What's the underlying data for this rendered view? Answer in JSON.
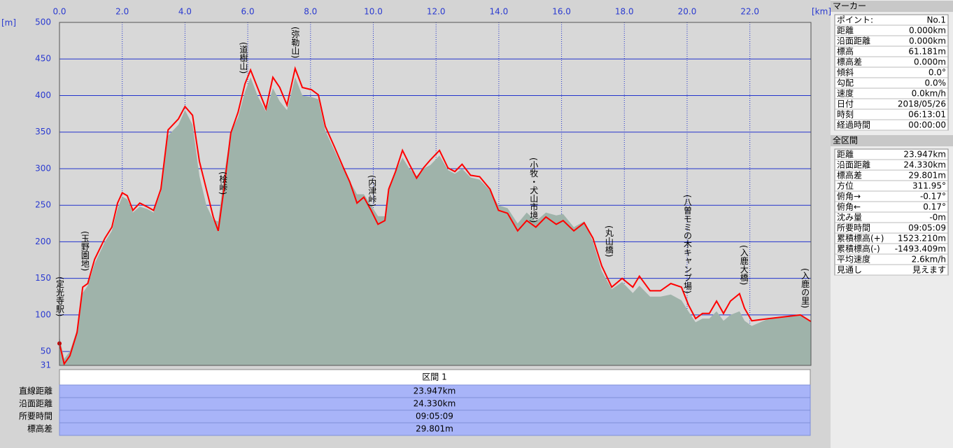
{
  "chart_data": {
    "type": "line",
    "x_unit": "[km]",
    "y_unit": "[m]",
    "xlim": [
      0,
      23.947
    ],
    "ylim": [
      31,
      500
    ],
    "xticks": [
      {
        "value": 0,
        "label": "0.0"
      },
      {
        "value": 2,
        "label": "2.0"
      },
      {
        "value": 4,
        "label": "4.0"
      },
      {
        "value": 6,
        "label": "6.0"
      },
      {
        "value": 8,
        "label": "8.0"
      },
      {
        "value": 10,
        "label": "10.0"
      },
      {
        "value": 12,
        "label": "12.0"
      },
      {
        "value": 14,
        "label": "14.0"
      },
      {
        "value": 16,
        "label": "16.0"
      },
      {
        "value": 18,
        "label": "18.0"
      },
      {
        "value": 20,
        "label": "20.0"
      },
      {
        "value": 22,
        "label": "22.0"
      }
    ],
    "yticks": [
      31,
      50,
      100,
      150,
      200,
      250,
      300,
      350,
      400,
      450,
      500
    ],
    "grid": true,
    "x": [
      0,
      0.15,
      0.33,
      0.56,
      0.74,
      0.9,
      1.12,
      1.45,
      1.67,
      1.85,
      2.0,
      2.16,
      2.34,
      2.56,
      2.79,
      3.0,
      3.23,
      3.46,
      3.79,
      4.0,
      4.24,
      4.46,
      4.68,
      4.9,
      5.06,
      5.24,
      5.46,
      5.69,
      5.91,
      6.09,
      6.31,
      6.58,
      6.8,
      7.02,
      7.25,
      7.51,
      7.74,
      8.03,
      8.25,
      8.47,
      8.76,
      9.03,
      9.25,
      9.48,
      9.7,
      9.93,
      10.15,
      10.37,
      10.49,
      10.71,
      10.93,
      11.15,
      11.38,
      11.6,
      11.82,
      12.11,
      12.38,
      12.6,
      12.83,
      13.1,
      13.39,
      13.72,
      13.99,
      14.28,
      14.6,
      14.89,
      15.18,
      15.5,
      15.83,
      16.05,
      16.39,
      16.72,
      17.0,
      17.28,
      17.6,
      17.93,
      18.27,
      18.48,
      18.82,
      19.15,
      19.48,
      19.82,
      20.04,
      20.27,
      20.49,
      20.71,
      20.94,
      21.16,
      21.38,
      21.67,
      21.83,
      22.06,
      22.61,
      23.61,
      23.947
    ],
    "series": [
      {
        "color": "#9fb3aa",
        "values": [
          70,
          40,
          50,
          80,
          130,
          140,
          170,
          200,
          215,
          245,
          262,
          258,
          240,
          248,
          245,
          240,
          268,
          345,
          360,
          380,
          360,
          290,
          250,
          230,
          228,
          290,
          350,
          370,
          405,
          425,
          400,
          378,
          410,
          392,
          380,
          425,
          400,
          398,
          395,
          352,
          325,
          300,
          283,
          265,
          265,
          250,
          235,
          235,
          275,
          296,
          315,
          300,
          290,
          300,
          305,
          318,
          298,
          293,
          300,
          288,
          285,
          270,
          250,
          246,
          225,
          240,
          228,
          240,
          236,
          238,
          220,
          228,
          200,
          160,
          135,
          145,
          130,
          140,
          125,
          125,
          128,
          120,
          105,
          90,
          95,
          95,
          105,
          92,
          100,
          105,
          92,
          85,
          95,
          100,
          90
        ]
      },
      {
        "color": "#ff0000",
        "values": [
          61,
          33,
          44,
          76,
          138,
          143,
          176,
          205,
          220,
          253,
          267,
          263,
          243,
          253,
          248,
          243,
          272,
          353,
          368,
          385,
          373,
          310,
          272,
          234,
          215,
          272,
          349,
          377,
          416,
          435,
          411,
          382,
          425,
          411,
          387,
          437,
          411,
          408,
          401,
          358,
          330,
          303,
          282,
          253,
          261,
          243,
          224,
          229,
          272,
          296,
          325,
          306,
          287,
          301,
          312,
          325,
          301,
          296,
          306,
          291,
          289,
          272,
          243,
          239,
          215,
          229,
          220,
          234,
          224,
          229,
          215,
          226,
          205,
          167,
          138,
          150,
          138,
          153,
          133,
          133,
          143,
          138,
          114,
          95,
          102,
          102,
          119,
          102,
          119,
          129,
          109,
          92,
          95,
          100,
          91
        ]
      }
    ],
    "annotations": [
      {
        "text": "(定光寺駅)",
        "x": 0
      },
      {
        "text": "(玉野園地)",
        "x": 0.8
      },
      {
        "text": "(桧峠)",
        "x": 5.2
      },
      {
        "text": "(道樹山)",
        "x": 5.85
      },
      {
        "text": "(弥勒山)",
        "x": 7.5
      },
      {
        "text": "(内津峠)",
        "x": 9.95
      },
      {
        "text": "(小牧・犬山市境)",
        "x": 15.1
      },
      {
        "text": "(丸山橋)",
        "x": 17.5
      },
      {
        "text": "(八曽モミの木キャンプ場)",
        "x": 20.0
      },
      {
        "text": "(入鹿大橋)",
        "x": 21.8
      },
      {
        "text": "(入鹿の里)",
        "x": 23.75
      }
    ]
  },
  "section_table": {
    "header": "区間 1",
    "rows": [
      [
        "直線距離",
        "23.947km"
      ],
      [
        "沿面距離",
        "24.330km"
      ],
      [
        "所要時間",
        "09:05:09"
      ],
      [
        "標高差",
        "29.801m"
      ]
    ]
  },
  "marker_panel": {
    "title": "マーカー",
    "rows": [
      [
        "ポイント:",
        "No.1"
      ],
      [
        "距離",
        "0.000km"
      ],
      [
        "沿面距離",
        "0.000km"
      ],
      [
        "標高",
        "61.181m"
      ],
      [
        "標高差",
        "0.000m"
      ],
      [
        "傾斜",
        "0.0°"
      ],
      [
        "勾配",
        "0.0%"
      ],
      [
        "速度",
        "0.0km/h"
      ],
      [
        "日付",
        "2018/05/26"
      ],
      [
        "時刻",
        "06:13:01"
      ],
      [
        "経過時間",
        "00:00:00"
      ]
    ]
  },
  "total_panel": {
    "title": "全区間",
    "rows": [
      [
        "距離",
        "23.947km"
      ],
      [
        "沿面距離",
        "24.330km"
      ],
      [
        "標高差",
        "29.801m"
      ],
      [
        "方位",
        "311.95°"
      ],
      [
        "俯角→",
        "-0.17°"
      ],
      [
        "俯角←",
        "0.17°"
      ],
      [
        "沈み量",
        "-0m"
      ],
      [
        "所要時間",
        "09:05:09"
      ],
      [
        "累積標高(+)",
        "1523.210m"
      ],
      [
        "累積標高(-)",
        "-1493.409m"
      ],
      [
        "平均速度",
        "2.6km/h"
      ],
      [
        "見通し",
        "見えます"
      ]
    ]
  }
}
